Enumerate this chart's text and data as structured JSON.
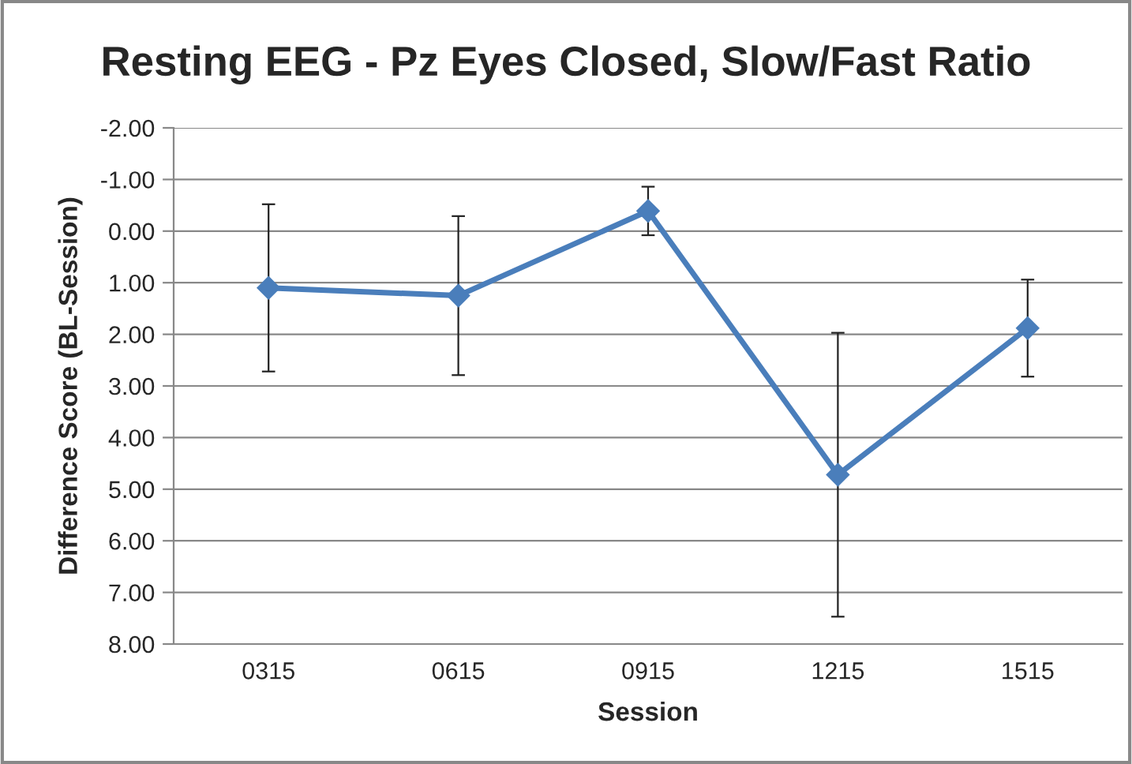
{
  "chart_data": {
    "type": "line",
    "title": "Resting EEG - Pz Eyes Closed, Slow/Fast Ratio",
    "xlabel": "Session",
    "ylabel": "Difference Score (BL-Session)",
    "categories": [
      "0315",
      "0615",
      "0915",
      "1215",
      "1515"
    ],
    "series": [
      {
        "color": "#4a7ebb",
        "values": [
          1.1,
          1.25,
          -0.39,
          4.72,
          1.88
        ],
        "errors": [
          1.62,
          1.54,
          0.47,
          2.75,
          0.94
        ]
      }
    ],
    "ylim": [
      8,
      -2
    ],
    "yticks": [
      {
        "value": -2,
        "label": "-2.00"
      },
      {
        "value": -1,
        "label": "-1.00"
      },
      {
        "value": 0,
        "label": "0.00"
      },
      {
        "value": 1,
        "label": "1.00"
      },
      {
        "value": 2,
        "label": "2.00"
      },
      {
        "value": 3,
        "label": "3.00"
      },
      {
        "value": 4,
        "label": "4.00"
      },
      {
        "value": 5,
        "label": "5.00"
      },
      {
        "value": 6,
        "label": "6.00"
      },
      {
        "value": 7,
        "label": "7.00"
      },
      {
        "value": 8,
        "label": "8.00"
      }
    ],
    "grid": "y",
    "marker": "diamond",
    "line_style": "solid",
    "legend": false
  }
}
